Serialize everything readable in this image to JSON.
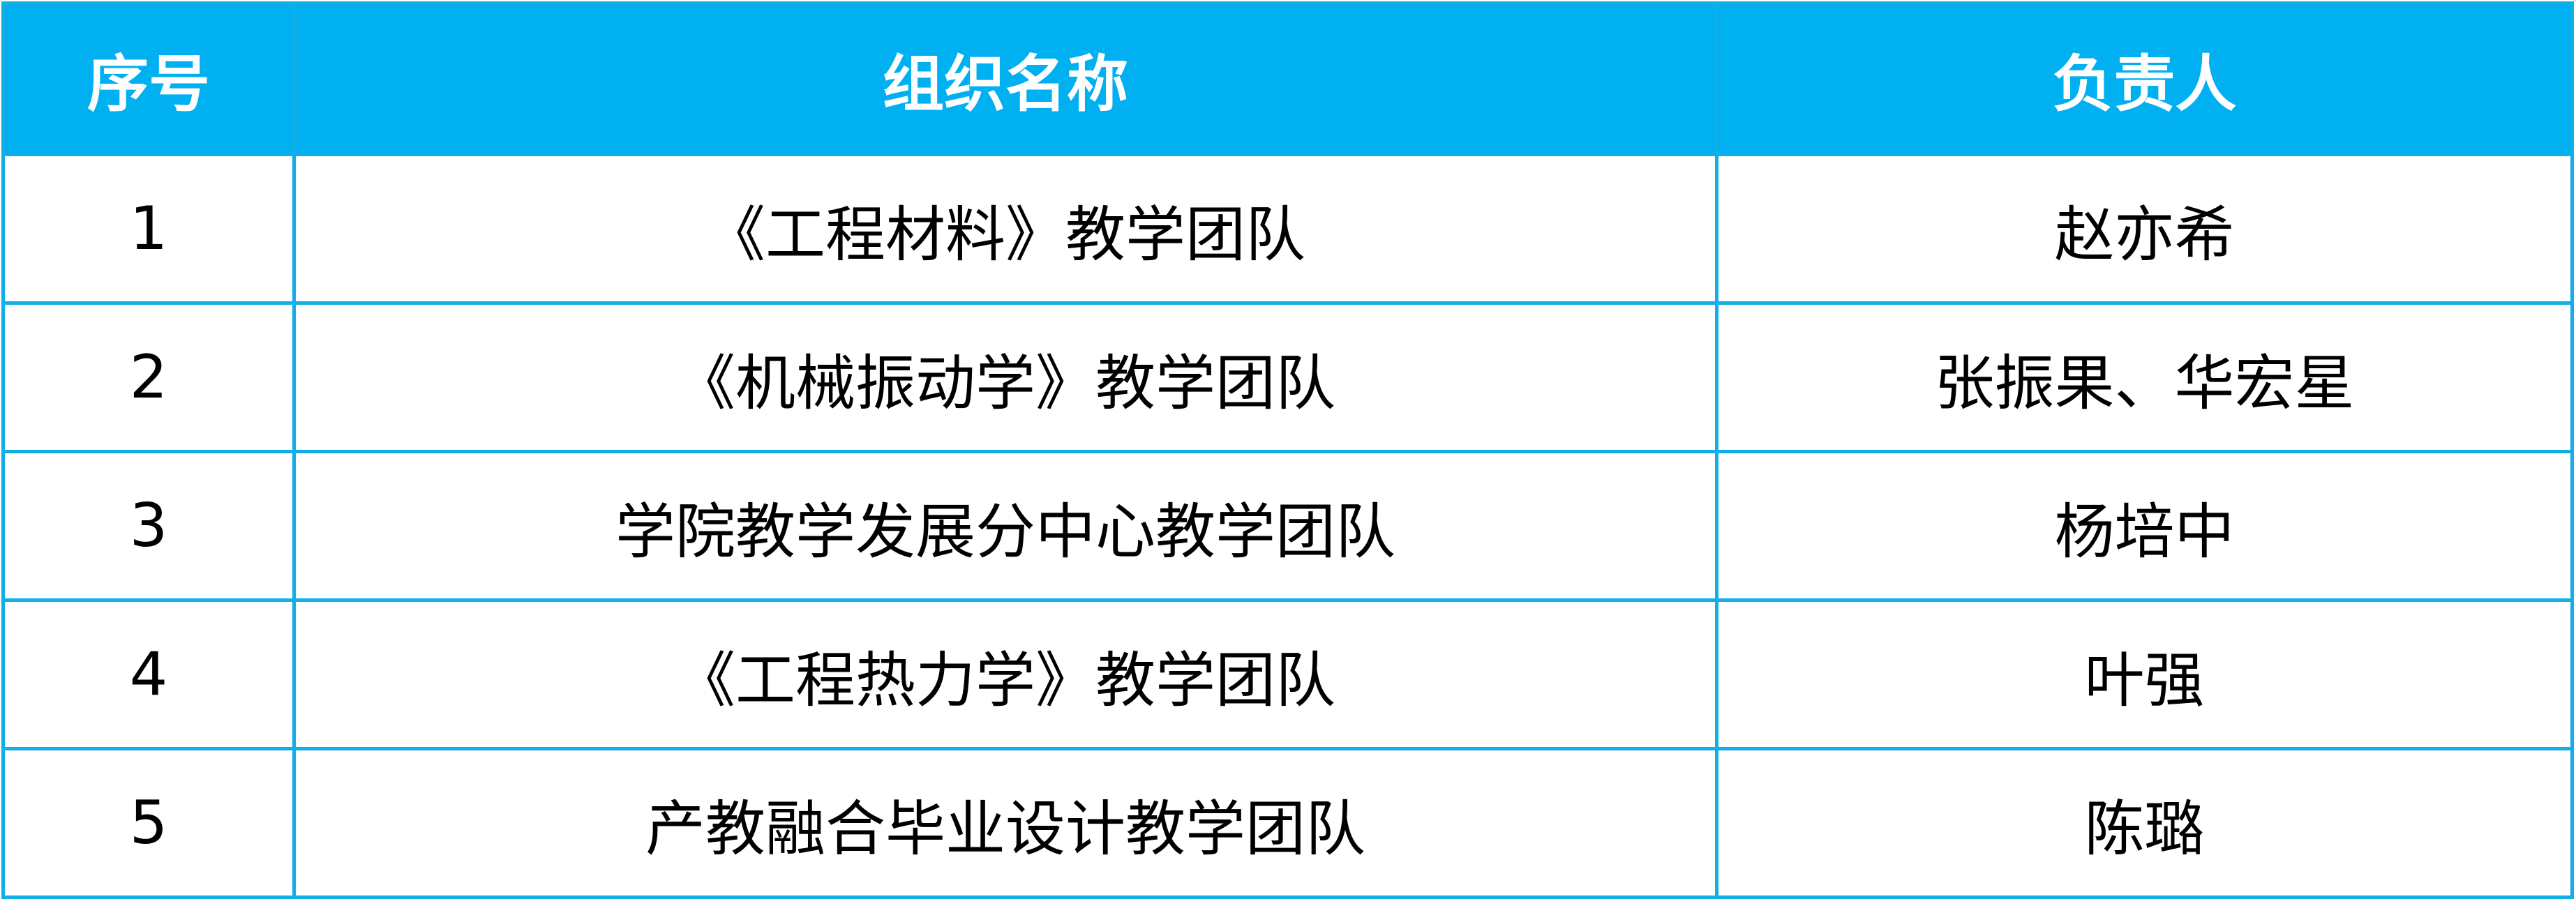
{
  "table": {
    "headers": [
      "序号",
      "组织名称",
      "负责人"
    ],
    "rows": [
      {
        "no": "1",
        "name": "《工程材料》教学团队",
        "leader": "赵亦希"
      },
      {
        "no": "2",
        "name": "《机械振动学》教学团队",
        "leader": "张振果、华宏星"
      },
      {
        "no": "3",
        "name": "学院教学发展分中心教学团队",
        "leader": "杨培中"
      },
      {
        "no": "4",
        "name": "《工程热力学》教学团队",
        "leader": "叶强"
      },
      {
        "no": "5",
        "name": "产教融合毕业设计教学团队",
        "leader": "陈璐"
      }
    ]
  },
  "colors": {
    "header_bg": "#00B0F0",
    "header_text": "#FFFFFF",
    "border": "#12AEE8"
  }
}
